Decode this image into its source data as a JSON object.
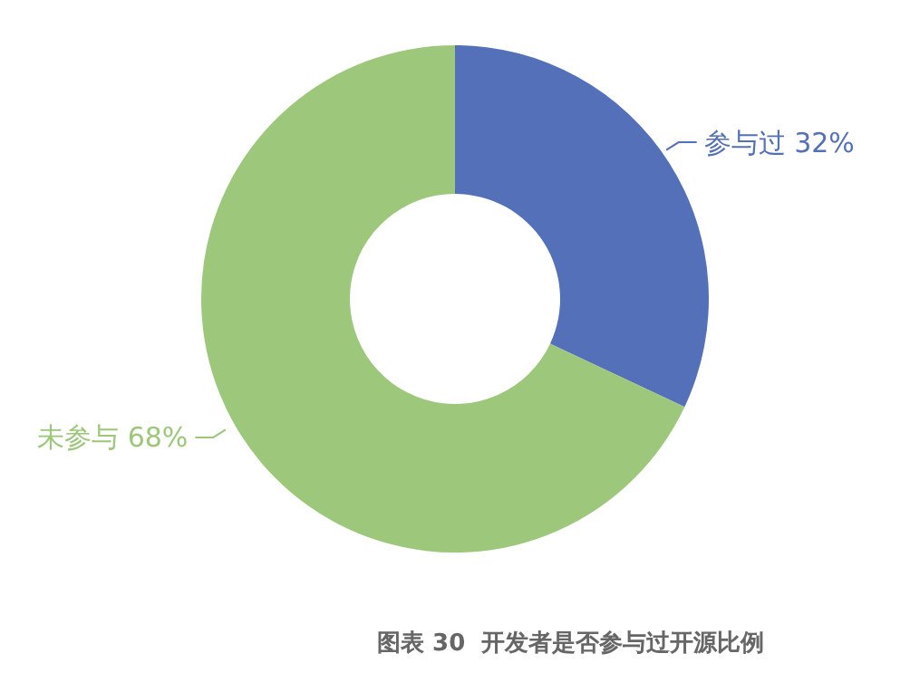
{
  "chart_data": {
    "type": "donut",
    "categories": [
      "参与过",
      "未参与"
    ],
    "values": [
      32,
      68
    ],
    "value_labels": [
      "32%",
      "68%"
    ],
    "colors": [
      "#5470b8",
      "#9dc77b"
    ],
    "annotations": [
      "图表 30  开发者是否参与过开源比例"
    ]
  }
}
